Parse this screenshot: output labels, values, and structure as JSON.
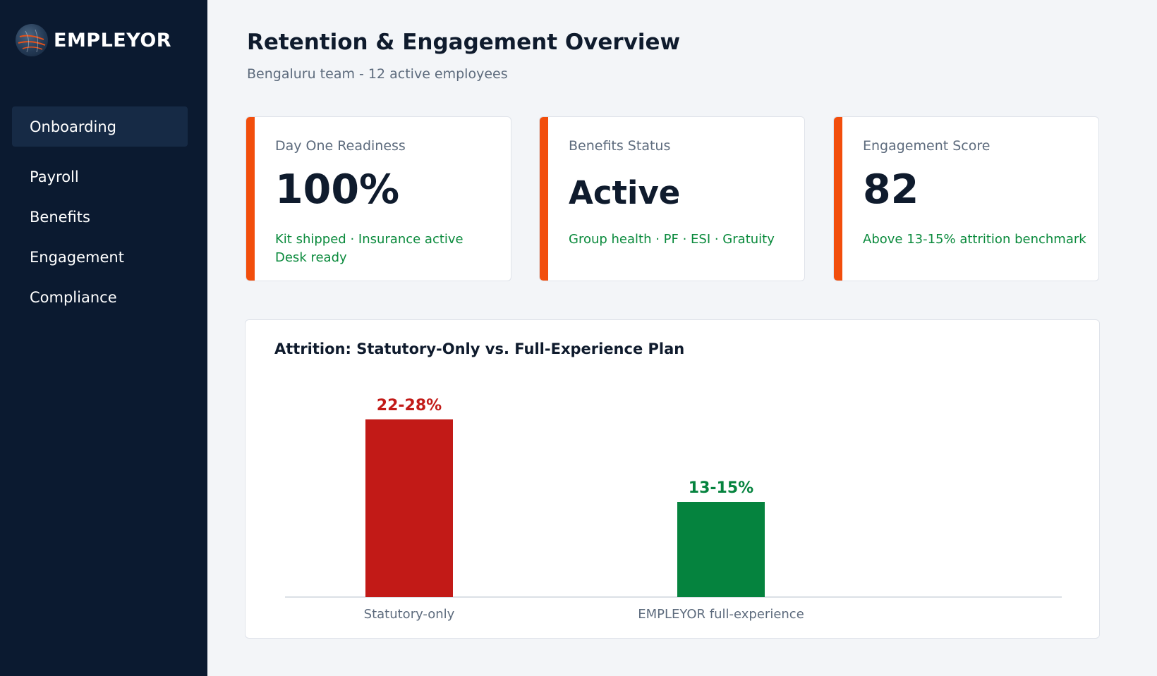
{
  "brand": {
    "name": "EMPLEYOR"
  },
  "sidebar": {
    "items": [
      {
        "label": "Onboarding",
        "active": true
      },
      {
        "label": "Payroll",
        "active": false
      },
      {
        "label": "Benefits",
        "active": false
      },
      {
        "label": "Engagement",
        "active": false
      },
      {
        "label": "Compliance",
        "active": false
      }
    ]
  },
  "header": {
    "title": "Retention & Engagement Overview",
    "subtitle": "Bengaluru team - 12 active employees"
  },
  "cards": [
    {
      "label": "Day One Readiness",
      "value": "100%",
      "note_lines": [
        "Kit shipped · Insurance active",
        "Desk ready"
      ]
    },
    {
      "label": "Benefits Status",
      "value": "Active",
      "note_lines": [
        "Group health · PF · ESI · Gratuity"
      ]
    },
    {
      "label": "Engagement Score",
      "value": "82",
      "note_lines": [
        "Above 13-15% attrition benchmark"
      ]
    }
  ],
  "colors": {
    "accent": "#f24e0c",
    "sidebar_bg": "#0b1a30",
    "positive": "#0a8a3c",
    "negative": "#c21a17"
  },
  "chart_data": {
    "type": "bar",
    "title": "Attrition: Statutory-Only vs. Full-Experience Plan",
    "categories": [
      "Statutory-only",
      "EMPLEYOR full-experience"
    ],
    "values": [
      28,
      15
    ],
    "value_labels": [
      "22-28%",
      "13-15%"
    ],
    "colors": [
      "#c21a17",
      "#05833e"
    ],
    "ylim": [
      0,
      30
    ],
    "grid": false,
    "legend": "none"
  }
}
